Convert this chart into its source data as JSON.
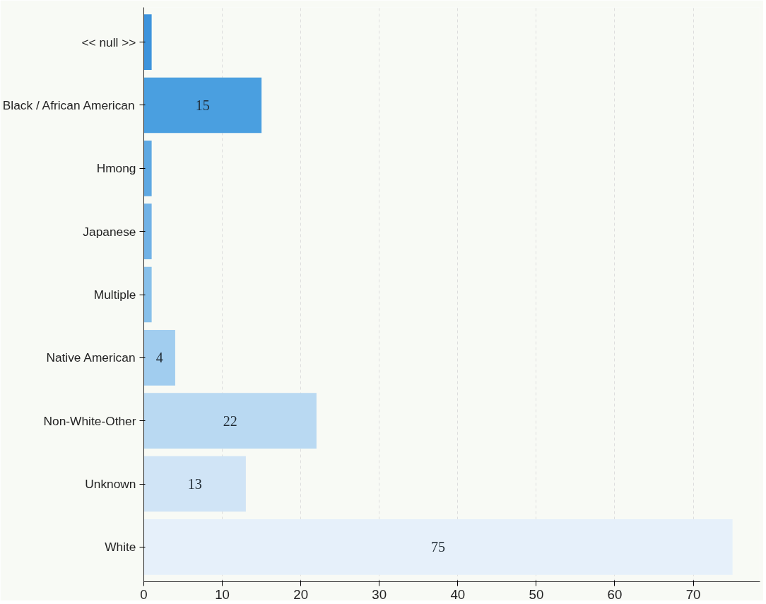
{
  "chart_data": {
    "type": "bar",
    "orientation": "horizontal",
    "categories": [
      "<< null >>",
      "Black / African American",
      "Hmong",
      "Japanese",
      "Multiple",
      "Native American",
      "Non-White-Other",
      "Unknown",
      "White"
    ],
    "values": [
      1,
      15,
      1,
      1,
      1,
      4,
      22,
      13,
      75
    ],
    "value_labels": [
      null,
      "15",
      null,
      null,
      null,
      "4",
      "22",
      "13",
      "75"
    ],
    "colors": [
      "#3d93dc",
      "#4a9fe0",
      "#5ea8e2",
      "#71b2e6",
      "#88c0ea",
      "#a1cdef",
      "#b9d9f2",
      "#d0e4f6",
      "#e6f0fa"
    ],
    "xlim": [
      0,
      78.5
    ],
    "xticks": [
      0,
      10,
      20,
      30,
      40,
      50,
      60,
      70
    ],
    "grid": "x"
  }
}
